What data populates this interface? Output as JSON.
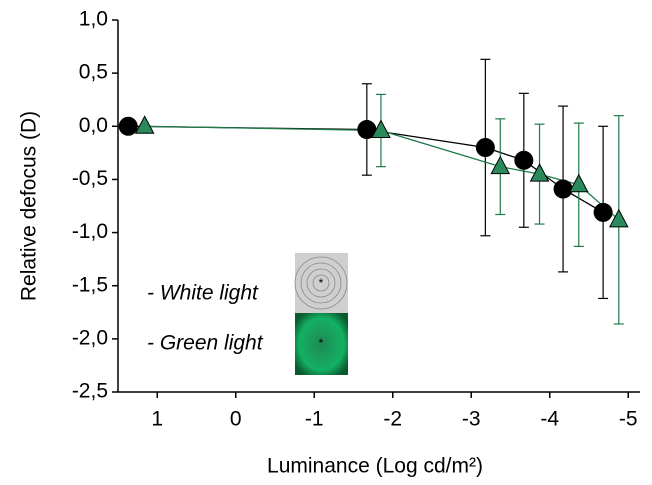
{
  "chart_data": {
    "type": "line",
    "x_label": "Luminance (Log cd/m²)",
    "y_label": "Relative defocus (D)",
    "xlim": [
      1.5,
      -5.15
    ],
    "ylim": [
      -2.5,
      1.0
    ],
    "xticks": [
      1,
      0,
      -1,
      -2,
      -3,
      -4,
      -5
    ],
    "yticks": [
      {
        "value": 1.0,
        "label": "1,0"
      },
      {
        "value": 0.5,
        "label": "0,5"
      },
      {
        "value": 0.0,
        "label": "0,0"
      },
      {
        "value": -0.5,
        "label": "-0,5"
      },
      {
        "value": -1.0,
        "label": "-1,0"
      },
      {
        "value": -1.5,
        "label": "-1,5"
      },
      {
        "value": -2.0,
        "label": "-2,0"
      },
      {
        "value": -2.5,
        "label": "-2,5"
      }
    ],
    "series": [
      {
        "name": "- White light",
        "color": "#000000",
        "marker": "circle",
        "x": [
          1.37,
          -1.67,
          -3.18,
          -3.67,
          -4.17,
          -4.68
        ],
        "values": [
          0.0,
          -0.03,
          -0.2,
          -0.32,
          -0.59,
          -0.81
        ],
        "errors": [
          null,
          0.43,
          0.83,
          0.63,
          0.78,
          0.81
        ]
      },
      {
        "name": "- Green light",
        "color": "#1e7a4a",
        "marker": "triangle",
        "x": [
          1.16,
          -1.85,
          -3.37,
          -3.87,
          -4.37,
          -4.88
        ],
        "values": [
          0.0,
          -0.04,
          -0.38,
          -0.45,
          -0.55,
          -0.88
        ],
        "errors": [
          null,
          0.34,
          0.45,
          0.47,
          0.58,
          0.98
        ]
      }
    ]
  }
}
